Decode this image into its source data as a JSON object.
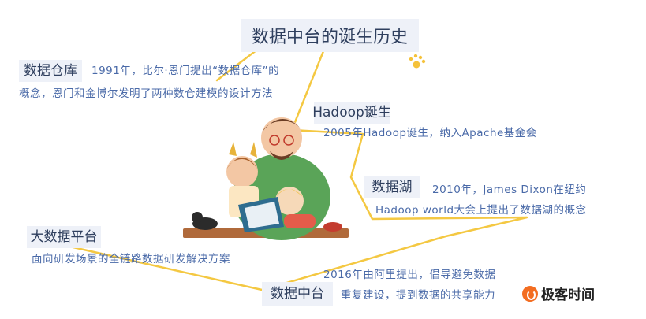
{
  "title": "数据中台的诞生历史",
  "milestones": [
    {
      "tag": "数据仓库",
      "line1": "1991年，比尔·恩门提出“数据仓库”的",
      "line2": "概念，恩门和金博尔发明了两种数仓建模的设计方法"
    },
    {
      "tag": "Hadoop诞生",
      "line1": "2005年Hadoop诞生，纳入Apache基金会"
    },
    {
      "tag": "数据湖",
      "line1": "2010年，James Dixon在纽约",
      "line2": "Hadoop world大会上提出了数据湖的概念"
    },
    {
      "tag": "大数据平台",
      "line1": "面向研发场景的全链路数据研发解决方案"
    },
    {
      "tag": "数据中台",
      "line1": "2016年由阿里提出，倡导避免数据",
      "line2": "重复建设，提到数据的共享能力"
    }
  ],
  "logo": {
    "text": "极客时间"
  },
  "colors": {
    "accent_line": "#f4c842",
    "tag_bg": "#eef1f8",
    "desc_text": "#4a6aa8",
    "tag_text": "#2f3f5e",
    "logo": "#f36d21"
  }
}
